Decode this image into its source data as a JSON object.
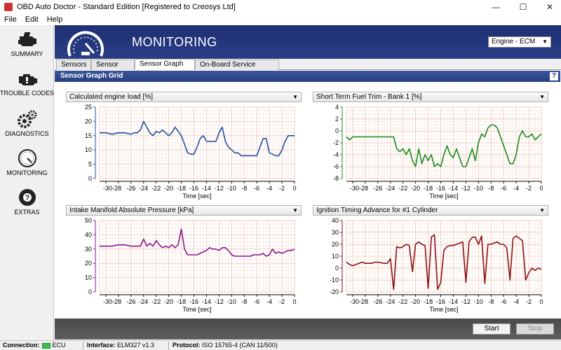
{
  "window": {
    "title": "OBD Auto Doctor - Standard Edition [Registered to Creosys Ltd]",
    "minimize": "—",
    "maximize": "☐",
    "close": "✕"
  },
  "menu": [
    "File",
    "Edit",
    "Help"
  ],
  "sidebar": [
    {
      "label": "SUMMARY",
      "icon": "engine-icon"
    },
    {
      "label": "TROUBLE CODES",
      "icon": "check-engine-icon"
    },
    {
      "label": "DIAGNOSTICS",
      "icon": "gears-icon"
    },
    {
      "label": "MONITORING",
      "icon": "gauge-icon"
    },
    {
      "label": "EXTRAS",
      "icon": "lifebuoy-icon"
    }
  ],
  "header": {
    "title": "MONITORING",
    "ecu_select": "Engine - ECM"
  },
  "tabs": [
    "Sensors",
    "Sensor Graph",
    "Sensor Graph Grid",
    "On-Board Service Activation"
  ],
  "active_tab": 2,
  "section": {
    "title": "Sensor Graph Grid",
    "help": "?"
  },
  "charts": [
    {
      "select": "Calculated engine load [%]",
      "xlabel": "Time [sec]",
      "color": "#1f4fa0",
      "chart_data": {
        "type": "line",
        "ylim": [
          0,
          25
        ],
        "yticks": [
          0,
          5,
          10,
          15,
          20,
          25
        ],
        "xlim": [
          -31,
          0
        ],
        "xticks": [
          -30,
          -28,
          -26,
          -24,
          -22,
          -20,
          -18,
          -16,
          -14,
          -12,
          -10,
          -8,
          -6,
          -4,
          -2,
          0
        ],
        "xtick_labels": [
          "-30-28",
          "",
          "-26",
          "-24",
          "-22",
          "-20",
          "-18",
          "-16",
          "-14",
          "-12",
          "-10",
          "-8",
          "-6",
          "-4",
          "-2",
          "0"
        ],
        "x": [
          -31,
          -30,
          -29,
          -28,
          -27,
          -26,
          -25.5,
          -25,
          -24.5,
          -24,
          -23.5,
          -23,
          -22.5,
          -22,
          -21.5,
          -21,
          -20.5,
          -20,
          -19.5,
          -19,
          -18.5,
          -18,
          -17.5,
          -17,
          -16.5,
          -16,
          -15.5,
          -15,
          -14.5,
          -14,
          -13.5,
          -13,
          -12.5,
          -12,
          -11.5,
          -11,
          -10.5,
          -10,
          -9.5,
          -9,
          -8.5,
          -8,
          -7.5,
          -7,
          -6.5,
          -6,
          -5.5,
          -5,
          -4.5,
          -4,
          -3.5,
          -3,
          -2.5,
          -2,
          -1.5,
          -1,
          -0.5,
          0
        ],
        "y": [
          16,
          16,
          15.5,
          16,
          16,
          15.5,
          16,
          16,
          17,
          20,
          18,
          16,
          15,
          16.5,
          16,
          17,
          16,
          15,
          16,
          18,
          16.5,
          15,
          12,
          9,
          8.5,
          8.5,
          11,
          14,
          15,
          13,
          13,
          13,
          13,
          16,
          18,
          13,
          11,
          10,
          9,
          9,
          8,
          8,
          8,
          8,
          8,
          8,
          11,
          14,
          14,
          9,
          8.5,
          8,
          8,
          10,
          13,
          15,
          15,
          15
        ]
      }
    },
    {
      "select": "Short Term Fuel Trim - Bank 1 [%]",
      "xlabel": "Time [sec]",
      "color": "#1c8a1c",
      "chart_data": {
        "type": "line",
        "ylim": [
          -8,
          4
        ],
        "yticks": [
          4,
          2,
          0,
          -2,
          -4,
          -6,
          -8
        ],
        "xlim": [
          -31,
          0
        ],
        "xticks": [
          -30,
          -28,
          -26,
          -24,
          -22,
          -20,
          -18,
          -16,
          -14,
          -12,
          -10,
          -8,
          -6,
          -4,
          -2,
          0
        ],
        "xtick_labels": [
          "-30-28",
          "",
          "-26",
          "-24",
          "-22",
          "-20",
          "-18",
          "-16",
          "-14",
          "-12",
          "-10",
          "-8",
          "-6",
          "-4",
          "-2",
          "0"
        ],
        "x": [
          -31,
          -30.5,
          -30,
          -29.5,
          -29,
          -28,
          -27,
          -26,
          -25,
          -24,
          -23.5,
          -23,
          -22.5,
          -22,
          -21.5,
          -21,
          -20.5,
          -20,
          -19.5,
          -19,
          -18.5,
          -18,
          -17.5,
          -17,
          -16.5,
          -16,
          -15.5,
          -15,
          -14.5,
          -14,
          -13.5,
          -13,
          -12.5,
          -12,
          -11.5,
          -11,
          -10.5,
          -10,
          -9.5,
          -9,
          -8.5,
          -8,
          -7.5,
          -7,
          -6.5,
          -6,
          -5.5,
          -5,
          -4.5,
          -4,
          -3.5,
          -3,
          -2.5,
          -2,
          -1.5,
          -1,
          -0.5,
          0
        ],
        "y": [
          -1,
          -1.5,
          -1,
          -1,
          -1,
          -1,
          -1,
          -1,
          -1,
          -1,
          -1,
          -3,
          -3.5,
          -3,
          -4,
          -3,
          -5,
          -6,
          -3,
          -5.5,
          -4,
          -5,
          -4,
          -6,
          -5.5,
          -6,
          -4,
          -2.5,
          -4,
          -4.5,
          -3,
          -4.5,
          -6,
          -6,
          -4.5,
          -3,
          -5,
          -2,
          -0.5,
          -1,
          0.5,
          1,
          1,
          0.5,
          -1,
          -2.5,
          -4,
          -5.5,
          -5.5,
          -4,
          -1,
          0,
          -1,
          -1,
          -0.5,
          -1.5,
          -1,
          -0.5
        ]
      }
    },
    {
      "select": "Intake Manifold Absolute Pressure [kPa]",
      "xlabel": "Time [sec]",
      "color": "#8a1a8a",
      "chart_data": {
        "type": "line",
        "ylim": [
          0,
          50
        ],
        "yticks": [
          0,
          10,
          20,
          30,
          40,
          50
        ],
        "xlim": [
          -31,
          0
        ],
        "xticks": [
          -30,
          -28,
          -26,
          -24,
          -22,
          -20,
          -18,
          -16,
          -14,
          -12,
          -10,
          -8,
          -6,
          -4,
          -2,
          0
        ],
        "xtick_labels": [
          "-30-28",
          "",
          "-26",
          "-24",
          "-22",
          "-20",
          "-18",
          "-16",
          "-14",
          "-12",
          "-10",
          "-8",
          "-6",
          "-4",
          "-2",
          "0"
        ],
        "x": [
          -31,
          -30,
          -29,
          -28,
          -27,
          -26,
          -25,
          -24.5,
          -24,
          -23.5,
          -23,
          -22.5,
          -22,
          -21.5,
          -21,
          -20.5,
          -20,
          -19.5,
          -19,
          -18.5,
          -18,
          -17.5,
          -17,
          -16.5,
          -16,
          -15.5,
          -15,
          -14.5,
          -14,
          -13.5,
          -13,
          -12.5,
          -12,
          -11.5,
          -11,
          -10.5,
          -10,
          -9.5,
          -9,
          -8.5,
          -8,
          -7.5,
          -7,
          -6.5,
          -6,
          -5.5,
          -5,
          -4.5,
          -4,
          -3.5,
          -3,
          -2.5,
          -2,
          -1.5,
          -1,
          -0.5,
          0
        ],
        "y": [
          32,
          32,
          32,
          33,
          33,
          32,
          32,
          32,
          37,
          32,
          34,
          32,
          36,
          33,
          31,
          32,
          31,
          33,
          31,
          33,
          44,
          30,
          26,
          26,
          26,
          26,
          27,
          28,
          29,
          31,
          30,
          30,
          29,
          31,
          31,
          29,
          26,
          25,
          25,
          25,
          25,
          25,
          25,
          26,
          26,
          26,
          27,
          25,
          26,
          30,
          27,
          28,
          27,
          28,
          29,
          29,
          30
        ]
      }
    },
    {
      "select": "Ignition Timing Advance for #1 Cylinder",
      "xlabel": "Time [sec]",
      "color": "#8c1010",
      "chart_data": {
        "type": "line",
        "ylim": [
          -20,
          40
        ],
        "yticks": [
          40,
          30,
          20,
          10,
          0,
          -10,
          -20
        ],
        "xlim": [
          -31,
          0
        ],
        "xticks": [
          -30,
          -28,
          -26,
          -24,
          -22,
          -20,
          -18,
          -16,
          -14,
          -12,
          -10,
          -8,
          -6,
          -4,
          -2,
          0
        ],
        "xtick_labels": [
          "-30-28",
          "",
          "-26",
          "-24",
          "-22",
          "-20",
          "-18",
          "-16",
          "-14",
          "-12",
          "-10",
          "-8",
          "-6",
          "-4",
          "-2",
          "0"
        ],
        "x": [
          -31,
          -30.5,
          -30,
          -29,
          -28.5,
          -28,
          -27,
          -26.5,
          -26,
          -25,
          -24.5,
          -24,
          -23.5,
          -23,
          -22.5,
          -22,
          -21.5,
          -21,
          -20.5,
          -20,
          -19.5,
          -19,
          -18.5,
          -18,
          -17.5,
          -17,
          -16.5,
          -16,
          -15.5,
          -15,
          -14.5,
          -14,
          -13.5,
          -13,
          -12.5,
          -12,
          -11.5,
          -11,
          -10.5,
          -10,
          -9.5,
          -9,
          -8.5,
          -8,
          -7.5,
          -7,
          -6.5,
          -6,
          -5.5,
          -5,
          -4.5,
          -4,
          -3.5,
          -3,
          -2.5,
          -2,
          -1.5,
          -1,
          -0.5,
          0
        ],
        "y": [
          5,
          3,
          2,
          4,
          5,
          4,
          4,
          5,
          5,
          4,
          4,
          8,
          -18,
          18,
          17,
          18,
          20,
          19,
          -3,
          20,
          22,
          20,
          19,
          -17,
          26,
          28,
          -18,
          -12,
          15,
          18,
          19,
          19,
          20,
          21,
          22,
          -12,
          22,
          26,
          26,
          20,
          27,
          -13,
          20,
          20,
          21,
          22,
          20,
          20,
          17,
          -10,
          25,
          27,
          25,
          23,
          -10,
          -4,
          0,
          -2,
          0,
          -1
        ]
      }
    }
  ],
  "buttons": {
    "start": "Start",
    "stop": "Stop"
  },
  "status": {
    "connection_label": "Connection:",
    "connection_value": "ECU",
    "interface_label": "Interface:",
    "interface_value": "ELM327 v1.3",
    "protocol_label": "Protocol:",
    "protocol_value": "ISO 15765-4 (CAN 11/500)",
    "led_color": "#38c04a"
  }
}
